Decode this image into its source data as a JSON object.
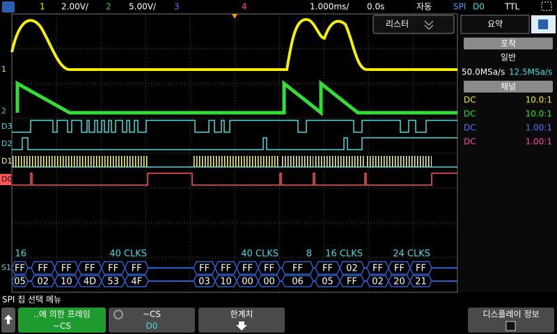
{
  "top_bar": {
    "ch1": "1",
    "ch1_scale": "2.00V/",
    "ch2": "2",
    "ch2_scale": "5.00V/",
    "ch3": "3",
    "ch4": "4",
    "timebase": "1.000ms/",
    "delay": "0.0s",
    "trigger_mode": "자동",
    "trigger_type": "SPI",
    "trigger_source": "D0",
    "trigger_level": "TTL"
  },
  "overlay": {
    "lister": "리스터"
  },
  "channel_labels": [
    "1",
    "2",
    "D3",
    "D2",
    "D1",
    "D0",
    "S1"
  ],
  "decode": [
    {
      "label": "16",
      "row1": [
        "FF"
      ],
      "row2": [
        "05"
      ]
    },
    {
      "label": "40  CLKS",
      "row1": [
        "FF",
        "FF",
        "FF",
        "FF",
        "FF"
      ],
      "row2": [
        "02",
        "10",
        "4D",
        "53",
        "4F"
      ]
    },
    {
      "label": "40  CLKS",
      "row1": [
        "FF",
        "FF",
        "FF",
        "FF"
      ],
      "row2": [
        "03",
        "10",
        "00",
        "00"
      ]
    },
    {
      "label": "8",
      "row1": [
        "FF"
      ],
      "row2": [
        "06"
      ]
    },
    {
      "label": "16  CLKS",
      "row1": [
        "FF",
        "02"
      ],
      "row2": [
        "05",
        "FF"
      ]
    },
    {
      "label": "24  CLKS",
      "row1": [
        "FF",
        "FF",
        "FF"
      ],
      "row2": [
        "02",
        "20",
        "21"
      ]
    }
  ],
  "side_panel": {
    "tab": "요약",
    "acquisition": "포착",
    "mode": "일반",
    "sample_rate": "50.0MSa/s",
    "digital_rate": "12.5MSa/s",
    "channels_title": "채널",
    "channels": [
      {
        "coupling": "DC",
        "probe": "10.0:1"
      },
      {
        "coupling": "DC",
        "probe": "10.0:1"
      },
      {
        "coupling": "DC",
        "probe": "1.00:1"
      },
      {
        "coupling": "DC",
        "probe": "1.00:1"
      }
    ]
  },
  "menu": {
    "title": "SPI 칩 선택 메뉴",
    "keys": [
      {
        "label": "..에 의한 프레임",
        "value": "~CS"
      },
      {
        "label": "~CS",
        "value": "D0"
      },
      {
        "label": "한계치"
      },
      {
        "label": "디스플레이 정보"
      }
    ]
  }
}
